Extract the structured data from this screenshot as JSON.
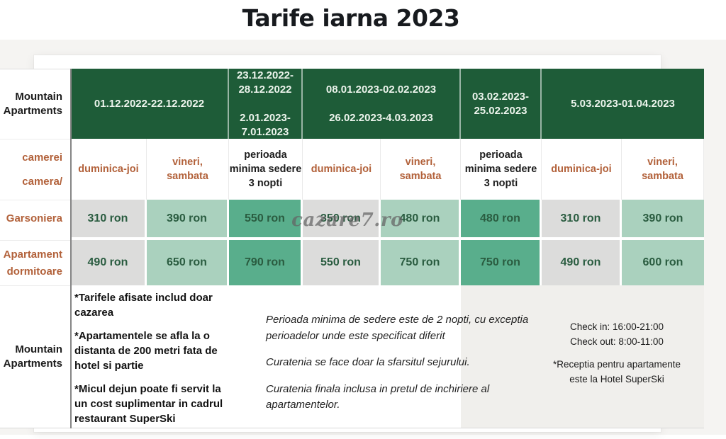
{
  "page": {
    "title": "Tarife iarna 2023",
    "watermark": "cazare7.ro"
  },
  "table": {
    "corner_label": "Mountain\nApartments",
    "room_type_label": "camerei\ncamera/",
    "periods": [
      "01.12.2022-22.12.2022",
      "23.12.2022-\n28.12.2022\n\n2.01.2023-\n7.01.2023",
      "08.01.2023-02.02.2023\n\n26.02.2023-4.03.2023",
      "03.02.2023-\n25.02.2023",
      "5.03.2023-01.04.2023"
    ],
    "day_headers": [
      "duminica-joi",
      "vineri,\nsambata",
      "perioada\nminima sedere\n3 nopti",
      "duminica-joi",
      "vineri,\nsambata",
      "perioada\nminima sedere\n3 nopti",
      "duminica-joi",
      "vineri,\nsambata"
    ],
    "rows": [
      {
        "label": "Garsoniera",
        "prices": [
          "310 ron",
          "390 ron",
          "550 ron",
          "350 ron",
          "480 ron",
          "480 ron",
          "310 ron",
          "390 ron"
        ]
      },
      {
        "label": "Apartament\ndormitoare",
        "prices": [
          "490 ron",
          "650 ron",
          "790 ron",
          "550 ron",
          "750 ron",
          "750 ron",
          "490 ron",
          "600 ron"
        ]
      }
    ],
    "footer": {
      "label": "Mountain\nApartments",
      "notes_left": [
        "*Tarifele afisate includ doar\ncazarea",
        "*Apartamentele se afla la o\ndistanta de 200 metri fata de\nhotel si partie",
        "*Micul dejun poate fi servit la\nun cost suplimentar in cadrul\nrestaurant SuperSki"
      ],
      "notes_center": [
        "Perioada minima de sedere este de 2 nopti, cu exceptia\nperioadelor unde este specificat diferit",
        "Curatenia se face doar la sfarsitul sejurului.",
        "Curatenia finala inclusa in pretul de inchiriere al\napartamentelor."
      ],
      "notes_right": [
        "Check in: 16:00-21:00\nCheck out: 8:00-11:00",
        "*Receptia pentru apartamente\neste la Hotel SuperSki"
      ]
    },
    "colors": {
      "header_green": "#1e5c38",
      "cell_gray": "#dcdcdb",
      "cell_light_green": "#aad1be",
      "cell_medium_green": "#59ae8c",
      "accent_orange": "#b2613a",
      "price_text": "#2a5c40"
    }
  }
}
